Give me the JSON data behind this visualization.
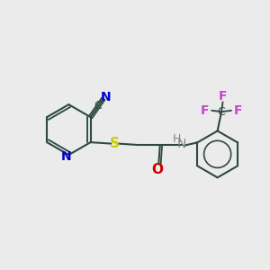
{
  "background_color": "#ebebeb",
  "bond_color": "#2d4a3e",
  "N_color": "#0000cc",
  "S_color": "#cccc00",
  "O_color": "#cc0000",
  "F_color": "#cc44cc",
  "NH_color": "#7a8a7a",
  "bond_width": 1.5,
  "figsize": [
    3.0,
    3.0
  ],
  "dpi": 100,
  "xlim": [
    0,
    10
  ],
  "ylim": [
    0,
    10
  ]
}
